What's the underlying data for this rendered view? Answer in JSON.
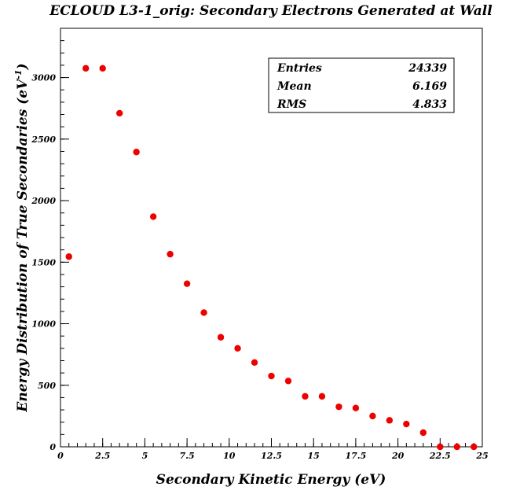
{
  "chart_data": {
    "type": "scatter",
    "title": "ECLOUD L3-1_orig: Secondary Electrons Generated at Wall",
    "xlabel": "Secondary Kinetic Energy (eV)",
    "ylabel": "Energy Distribution of True Secondaries (eV",
    "ylabel_sup": "-1",
    "ylabel_close": ")",
    "xlim": [
      0,
      25
    ],
    "ylim": [
      0,
      3400
    ],
    "x_ticks": [
      {
        "value": 0,
        "label": "0"
      },
      {
        "value": 2.5,
        "label": "2.5"
      },
      {
        "value": 5,
        "label": "5"
      },
      {
        "value": 7.5,
        "label": "7.5"
      },
      {
        "value": 10,
        "label": "10"
      },
      {
        "value": 12.5,
        "label": "12.5"
      },
      {
        "value": 15,
        "label": "15"
      },
      {
        "value": 17.5,
        "label": "17.5"
      },
      {
        "value": 20,
        "label": "20"
      },
      {
        "value": 22.5,
        "label": "22.5"
      },
      {
        "value": 25,
        "label": "25"
      }
    ],
    "y_ticks": [
      {
        "value": 0,
        "label": "0"
      },
      {
        "value": 500,
        "label": "500"
      },
      {
        "value": 1000,
        "label": "1000"
      },
      {
        "value": 1500,
        "label": "1500"
      },
      {
        "value": 2000,
        "label": "2000"
      },
      {
        "value": 2500,
        "label": "2500"
      },
      {
        "value": 3000,
        "label": "3000"
      }
    ],
    "series": [
      {
        "color": "#ee0000",
        "x": [
          0.5,
          1.5,
          2.5,
          3.5,
          4.5,
          5.5,
          6.5,
          7.5,
          8.5,
          9.5,
          10.5,
          11.5,
          12.5,
          13.5,
          14.5,
          15.5,
          16.5,
          17.5,
          18.5,
          19.5,
          20.5,
          21.5,
          22.5,
          23.5,
          24.5
        ],
        "y": [
          1545,
          3075,
          3075,
          2710,
          2395,
          1870,
          1565,
          1325,
          1090,
          890,
          800,
          685,
          575,
          535,
          410,
          410,
          325,
          315,
          250,
          215,
          185,
          115,
          0,
          0,
          0
        ]
      }
    ],
    "stats_box": [
      {
        "label": "Entries",
        "value": "24339"
      },
      {
        "label": "Mean",
        "value": "6.169"
      },
      {
        "label": "RMS",
        "value": "4.833"
      }
    ],
    "grid": false,
    "legend": "none"
  }
}
